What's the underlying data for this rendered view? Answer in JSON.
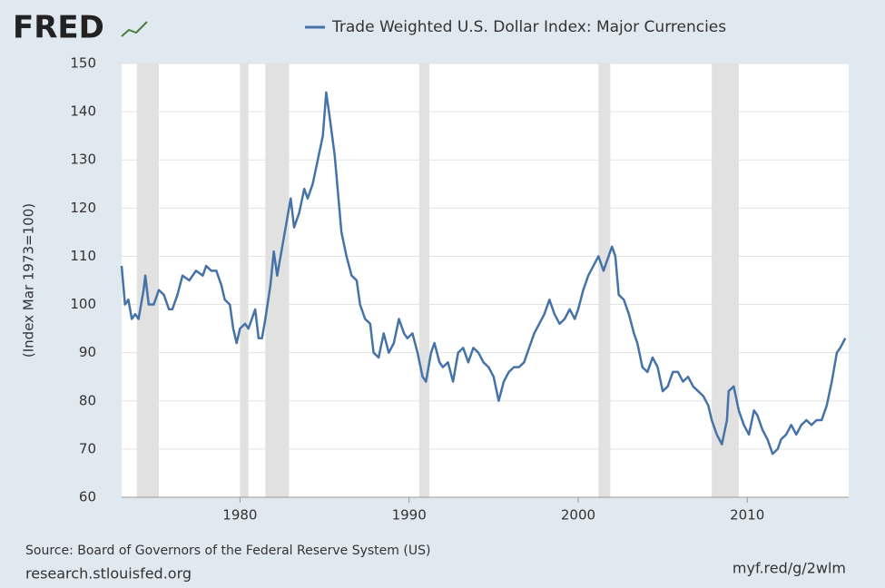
{
  "logo": "FRED",
  "chart_data": {
    "type": "line",
    "y_label": "(Index Mar 1973=100)",
    "source": "Source: Board of Governors of the Federal Reserve System (US)",
    "site": "research.stlouisfed.org",
    "short_link": "myf.red/g/2wlm",
    "xlim": [
      1973,
      2016
    ],
    "ylim": [
      60,
      150
    ],
    "xticks": [
      1980,
      1990,
      2000,
      2010
    ],
    "yticks": [
      60,
      70,
      80,
      90,
      100,
      110,
      120,
      130,
      140,
      150
    ],
    "grid": true,
    "recessions": [
      [
        1973.9,
        1975.2
      ],
      [
        1980.0,
        1980.5
      ],
      [
        1981.5,
        1982.9
      ],
      [
        1990.6,
        1991.2
      ],
      [
        2001.2,
        2001.9
      ],
      [
        2007.9,
        2009.5
      ]
    ],
    "x": [
      1973.0,
      1973.2,
      1973.4,
      1973.6,
      1973.8,
      1974.0,
      1974.3,
      1974.4,
      1974.6,
      1974.9,
      1975.2,
      1975.5,
      1975.8,
      1976.0,
      1976.3,
      1976.6,
      1977.0,
      1977.4,
      1977.8,
      1978.0,
      1978.3,
      1978.6,
      1978.9,
      1979.1,
      1979.4,
      1979.6,
      1979.8,
      1980.0,
      1980.3,
      1980.5,
      1980.7,
      1980.9,
      1981.1,
      1981.3,
      1981.5,
      1981.8,
      1982.0,
      1982.2,
      1982.5,
      1982.8,
      1983.0,
      1983.2,
      1983.5,
      1983.8,
      1984.0,
      1984.3,
      1984.6,
      1984.9,
      1985.1,
      1985.3,
      1985.6,
      1985.8,
      1986.0,
      1986.3,
      1986.6,
      1986.9,
      1987.1,
      1987.4,
      1987.7,
      1987.9,
      1988.2,
      1988.5,
      1988.8,
      1989.1,
      1989.4,
      1989.7,
      1989.9,
      1990.2,
      1990.5,
      1990.8,
      1991.0,
      1991.3,
      1991.5,
      1991.8,
      1992.0,
      1992.3,
      1992.6,
      1992.9,
      1993.2,
      1993.5,
      1993.8,
      1994.1,
      1994.4,
      1994.7,
      1995.0,
      1995.3,
      1995.6,
      1995.9,
      1996.2,
      1996.5,
      1996.8,
      1997.1,
      1997.4,
      1997.7,
      1998.0,
      1998.3,
      1998.6,
      1998.9,
      1999.2,
      1999.5,
      1999.8,
      2000.0,
      2000.3,
      2000.6,
      2000.9,
      2001.2,
      2001.5,
      2001.8,
      2002.0,
      2002.2,
      2002.4,
      2002.7,
      2003.0,
      2003.3,
      2003.5,
      2003.8,
      2004.1,
      2004.4,
      2004.7,
      2005.0,
      2005.3,
      2005.6,
      2005.9,
      2006.2,
      2006.5,
      2006.8,
      2007.1,
      2007.4,
      2007.7,
      2007.9,
      2008.2,
      2008.5,
      2008.8,
      2008.9,
      2009.2,
      2009.5,
      2009.8,
      2010.1,
      2010.4,
      2010.6,
      2010.9,
      2011.2,
      2011.5,
      2011.8,
      2012.0,
      2012.3,
      2012.6,
      2012.9,
      2013.2,
      2013.5,
      2013.8,
      2014.1,
      2014.4,
      2014.7,
      2015.0,
      2015.3,
      2015.5,
      2015.8
    ],
    "series": [
      {
        "name": "Trade Weighted U.S. Dollar Index: Major Currencies",
        "color": "#4572a7",
        "values": [
          108,
          100,
          101,
          97,
          98,
          97,
          103,
          106,
          100,
          100,
          103,
          102,
          99,
          99,
          102,
          106,
          105,
          107,
          106,
          108,
          107,
          107,
          104,
          101,
          100,
          95,
          92,
          95,
          96,
          95,
          97,
          99,
          93,
          93,
          97,
          104,
          111,
          106,
          112,
          118,
          122,
          116,
          119,
          124,
          122,
          125,
          130,
          135,
          144,
          139,
          131,
          123,
          115,
          110,
          106,
          105,
          100,
          97,
          96,
          90,
          89,
          94,
          90,
          92,
          97,
          94,
          93,
          94,
          90,
          85,
          84,
          90,
          92,
          88,
          87,
          88,
          84,
          90,
          91,
          88,
          91,
          90,
          88,
          87,
          85,
          80,
          84,
          86,
          87,
          87,
          88,
          91,
          94,
          96,
          98,
          101,
          98,
          96,
          97,
          99,
          97,
          99,
          103,
          106,
          108,
          110,
          107,
          110,
          112,
          110,
          102,
          101,
          98,
          94,
          92,
          87,
          86,
          89,
          87,
          82,
          83,
          86,
          86,
          84,
          85,
          83,
          82,
          81,
          79,
          76,
          73,
          71,
          76,
          82,
          83,
          78,
          75,
          73,
          78,
          77,
          74,
          72,
          69,
          70,
          72,
          73,
          75,
          73,
          75,
          76,
          75,
          76,
          76,
          79,
          84,
          90,
          91,
          93
        ]
      }
    ]
  }
}
